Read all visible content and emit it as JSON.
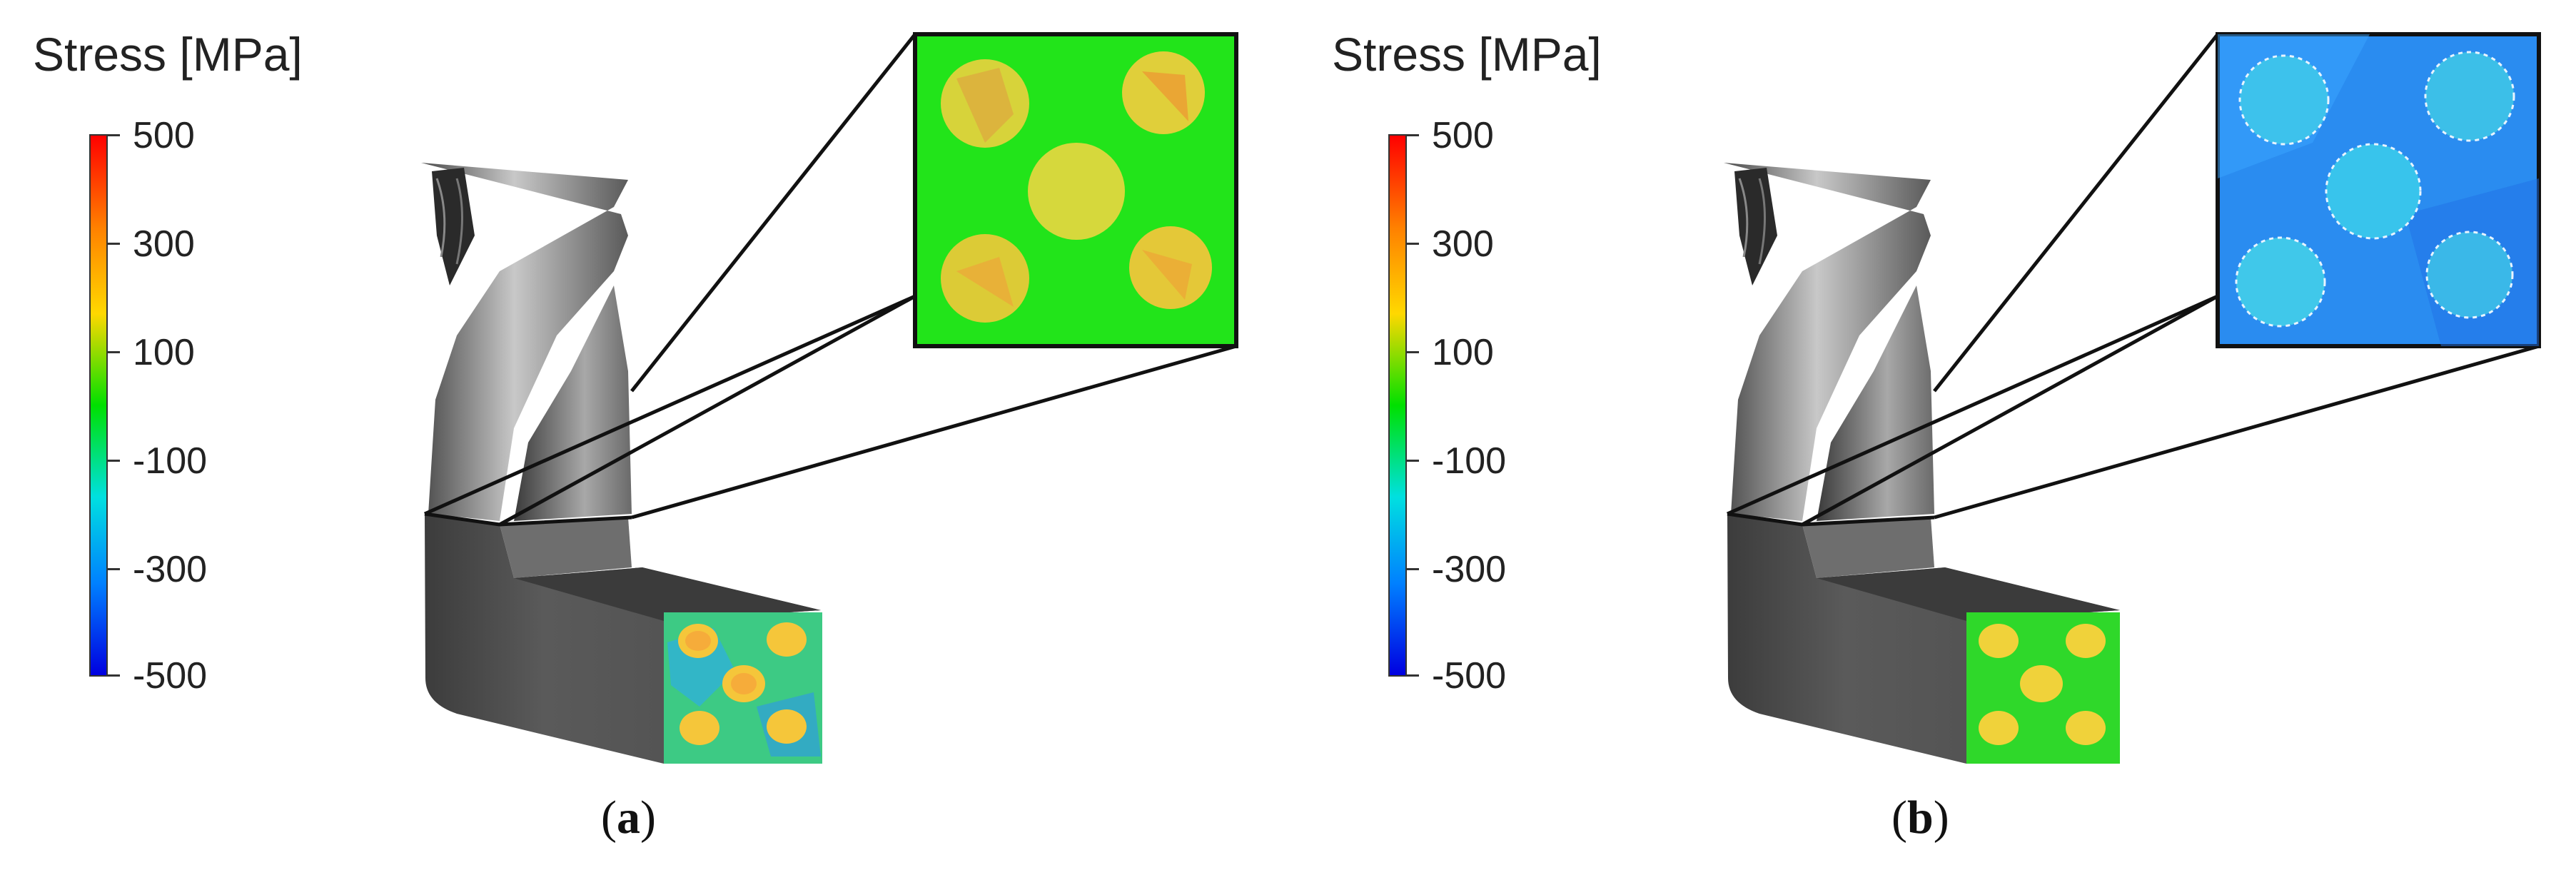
{
  "colorbar": {
    "title": "Stress [MPa]",
    "ticks": [
      "500",
      "300",
      "100",
      "-100",
      "-300",
      "-500"
    ],
    "colors": [
      "#ff0000",
      "#ff8000",
      "#ffd800",
      "#00e000",
      "#00e0e0",
      "#0080ff",
      "#0000e0"
    ]
  },
  "panels": [
    {
      "label_open": "(",
      "label_letter": "a",
      "label_close": ")",
      "inset_color": "#22e41a",
      "inset_particle_color": "#d8d830"
    },
    {
      "label_open": "(",
      "label_letter": "b",
      "label_close": ")",
      "inset_color": "#1f9dff",
      "inset_particle_color": "#33c8e8"
    }
  ]
}
